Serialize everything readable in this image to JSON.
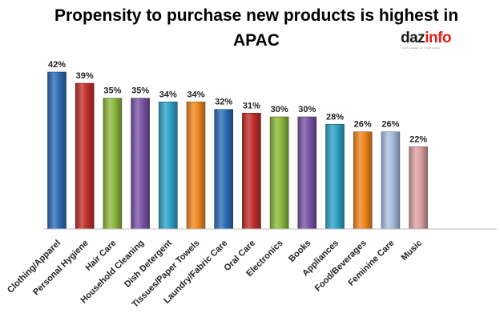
{
  "title": "Propensity to purchase new products is highest in APAC",
  "logo": {
    "text_main": "daz",
    "text_accent": "info",
    "tagline": "STAY AHEAD OF YOUR GURU"
  },
  "colors": {
    "blue": "#2e6db5",
    "red": "#c0302c",
    "green": "#8db83e",
    "purple": "#7a55a5",
    "teal": "#2fa4c8",
    "orange": "#f0871f",
    "lightblue": "#a9bfe0",
    "pink": "#dba3a1"
  },
  "chart_data": {
    "type": "bar",
    "categories": [
      "Clothing/Apparel",
      "Personal Hygiene",
      "Hair Care",
      "Household Cleaning",
      "Dish Detergent",
      "Tissues/Paper Towels",
      "Laundry/Fabric Care",
      "Oral Care",
      "Electronics",
      "Books",
      "Appliances",
      "Food/Beverages",
      "Feminine Care",
      "Music"
    ],
    "values": [
      42,
      39,
      35,
      35,
      34,
      34,
      32,
      31,
      30,
      30,
      28,
      26,
      26,
      22
    ],
    "value_labels": [
      "42%",
      "39%",
      "35%",
      "35%",
      "34%",
      "34%",
      "32%",
      "31%",
      "30%",
      "30%",
      "28%",
      "26%",
      "26%",
      "22%"
    ],
    "bar_colors": [
      "blue",
      "red",
      "green",
      "purple",
      "teal",
      "orange",
      "blue",
      "red",
      "green",
      "purple",
      "teal",
      "orange",
      "lightblue",
      "pink"
    ],
    "ylim": [
      0,
      45
    ],
    "grid": false,
    "legend": "none",
    "xlabel": "",
    "ylabel": ""
  }
}
